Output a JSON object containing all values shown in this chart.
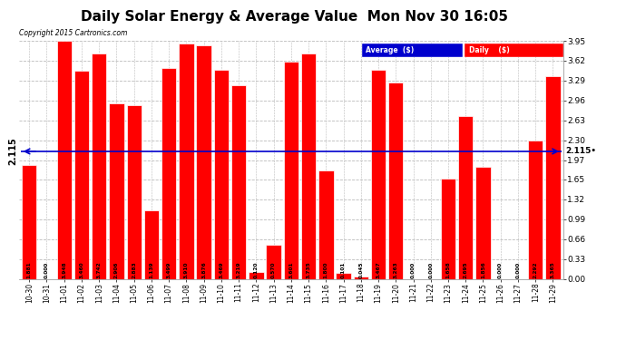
{
  "title": "Daily Solar Energy & Average Value  Mon Nov 30 16:05",
  "copyright": "Copyright 2015 Cartronics.com",
  "categories": [
    "10-30",
    "10-31",
    "11-01",
    "11-02",
    "11-03",
    "11-04",
    "11-05",
    "11-06",
    "11-07",
    "11-08",
    "11-09",
    "11-10",
    "11-11",
    "11-12",
    "11-13",
    "11-14",
    "11-15",
    "11-16",
    "11-17",
    "11-18",
    "11-19",
    "11-20",
    "11-21",
    "11-22",
    "11-23",
    "11-24",
    "11-25",
    "11-26",
    "11-27",
    "11-28",
    "11-29"
  ],
  "values": [
    1.881,
    0.0,
    3.948,
    3.46,
    3.742,
    2.906,
    2.883,
    1.139,
    3.499,
    3.91,
    3.876,
    3.469,
    3.219,
    0.12,
    0.57,
    3.601,
    3.735,
    1.8,
    0.101,
    0.045,
    3.467,
    3.263,
    0.0,
    0.0,
    1.658,
    2.695,
    1.856,
    0.0,
    0.0,
    2.292,
    3.365
  ],
  "average": 2.115,
  "bar_color": "#ff0000",
  "bar_edge_color": "#ffffff",
  "avg_line_color": "#0000cd",
  "background_color": "#ffffff",
  "plot_bg_color": "#ffffff",
  "ylim": [
    0.0,
    3.95
  ],
  "yticks": [
    0.0,
    0.33,
    0.66,
    0.99,
    1.32,
    1.65,
    1.97,
    2.3,
    2.63,
    2.96,
    3.29,
    3.62,
    3.95
  ],
  "grid_color": "#bbbbbb",
  "title_fontsize": 11,
  "legend_avg_color": "#0000cd",
  "legend_daily_color": "#ff0000",
  "avg_label": "Average  ($)",
  "daily_label": "Daily    ($)"
}
